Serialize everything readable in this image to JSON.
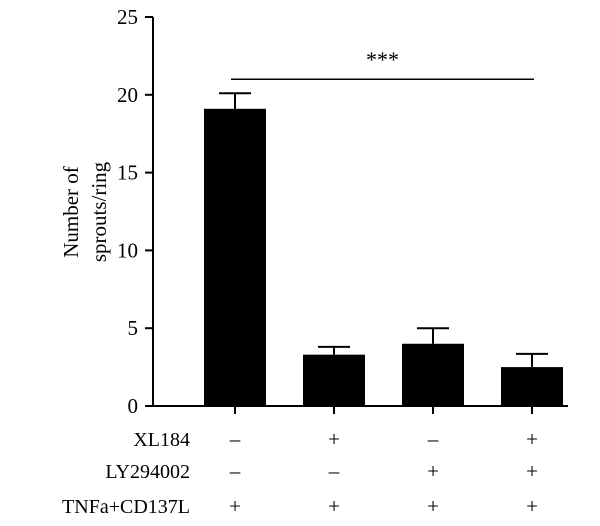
{
  "chart_data": {
    "type": "bar",
    "title": "",
    "xlabel": "",
    "ylabel_lines": [
      "Number of",
      "sprouts/ring"
    ],
    "ylim": [
      0,
      25
    ],
    "yticks": [
      0,
      5,
      10,
      15,
      20,
      25
    ],
    "bar_color": "#000000",
    "values": [
      19.1,
      3.3,
      4.0,
      2.5
    ],
    "errors": [
      1.0,
      0.5,
      1.0,
      0.85
    ],
    "conditions": [
      {
        "label": "XL184",
        "marks": [
          "–",
          "+",
          "–",
          "+"
        ]
      },
      {
        "label": "LY294002",
        "marks": [
          "–",
          "–",
          "+",
          "+"
        ]
      },
      {
        "label": "TNFa+CD137L",
        "marks": [
          "+",
          "+",
          "+",
          "+"
        ]
      }
    ],
    "significance": {
      "text": "***",
      "from_bar": 0,
      "to_bar": 3,
      "y": 21
    },
    "grid": false,
    "legend": "none"
  }
}
